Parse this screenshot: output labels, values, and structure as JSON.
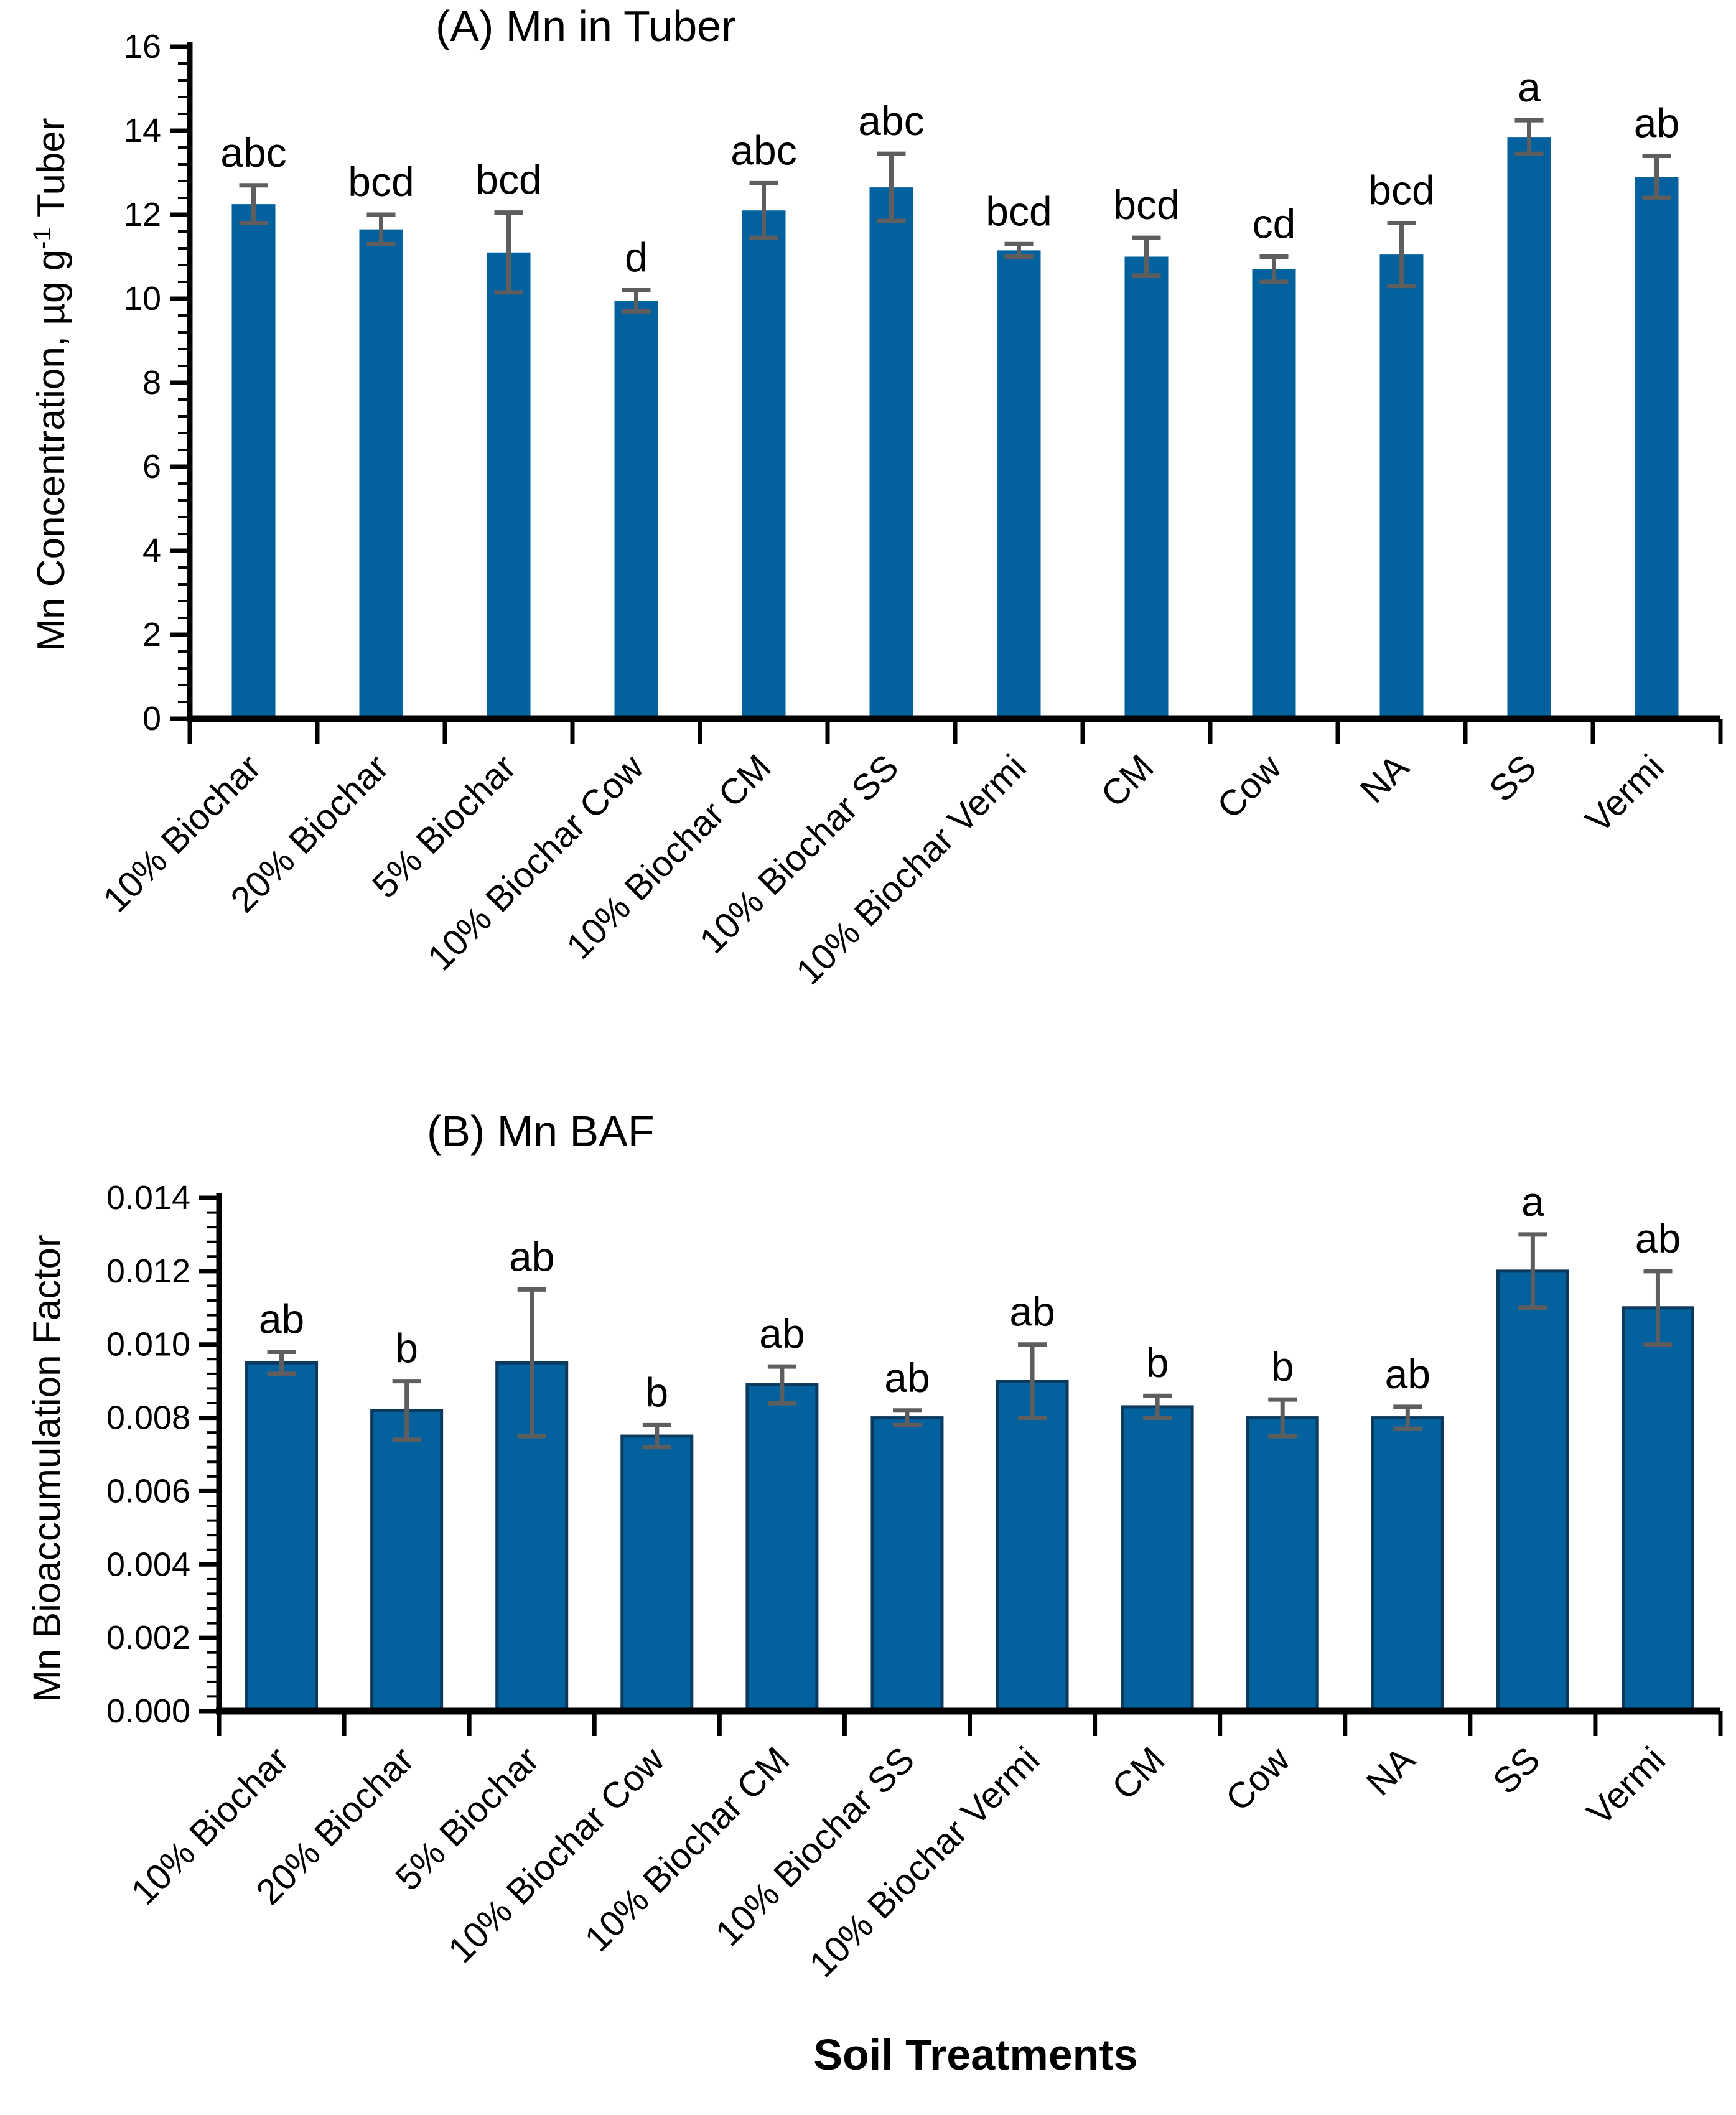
{
  "colors": {
    "bar_fill": "#03619e",
    "bar_border": "#0c3a5e",
    "error_bar": "#5e5e5e",
    "axis": "#000000",
    "text": "#000000",
    "background": "#ffffff"
  },
  "x_axis_title": "Soil Treatments",
  "chart_data": [
    {
      "type": "bar",
      "panel": "A",
      "title": "(A) Mn in Tuber",
      "ylabel": "Mn Concentration, µg g⁻¹ Tuber",
      "ylabel_parts": [
        "Mn Concentration, µg g",
        "-1",
        " Tuber"
      ],
      "xlabel": "",
      "categories": [
        "10% Biochar",
        "20% Biochar",
        "5% Biochar",
        "10% Biochar Cow",
        "10% Biochar CM",
        "10% Biochar SS",
        "10% Biochar Vermi",
        "CM",
        "Cow",
        "NA",
        "SS",
        "Vermi"
      ],
      "values": [
        12.25,
        11.65,
        11.1,
        9.95,
        12.1,
        12.65,
        11.15,
        11.0,
        10.7,
        11.05,
        13.85,
        12.9
      ],
      "error_bars": [
        0.45,
        0.35,
        0.95,
        0.25,
        0.65,
        0.8,
        0.15,
        0.45,
        0.3,
        0.75,
        0.4,
        0.5
      ],
      "sig_letters": [
        "abc",
        "bcd",
        "bcd",
        "d",
        "abc",
        "abc",
        "bcd",
        "bcd",
        "cd",
        "bcd",
        "a",
        "ab"
      ],
      "ylim": [
        0,
        16
      ],
      "ytick_step": 2,
      "yminor_step": 0.4,
      "ytick_labels": [
        "0",
        "2",
        "4",
        "6",
        "8",
        "10",
        "12",
        "14",
        "16"
      ],
      "grid": false,
      "legend": "none"
    },
    {
      "type": "bar",
      "panel": "B",
      "title": "(B) Mn BAF",
      "ylabel": "Mn Bioaccumulation Factor",
      "ylabel_parts": [
        "Mn Bioaccumulation Factor",
        "",
        ""
      ],
      "xlabel": "Soil Treatments",
      "categories": [
        "10% Biochar",
        "20% Biochar",
        "5% Biochar",
        "10% Biochar Cow",
        "10% Biochar CM",
        "10% Biochar SS",
        "10% Biochar Vermi",
        "CM",
        "Cow",
        "NA",
        "SS",
        "Vermi"
      ],
      "values": [
        0.0095,
        0.0082,
        0.0095,
        0.0075,
        0.0089,
        0.008,
        0.009,
        0.0083,
        0.008,
        0.008,
        0.012,
        0.011
      ],
      "error_bars": [
        0.0003,
        0.0008,
        0.002,
        0.0003,
        0.0005,
        0.0002,
        0.001,
        0.0003,
        0.0005,
        0.0003,
        0.001,
        0.001
      ],
      "sig_letters": [
        "ab",
        "b",
        "ab",
        "b",
        "ab",
        "ab",
        "ab",
        "b",
        "b",
        "ab",
        "a",
        "ab"
      ],
      "ylim": [
        0,
        0.014
      ],
      "ytick_step": 0.002,
      "yminor_step": 0.0004,
      "ytick_labels": [
        "0.000",
        "0.002",
        "0.004",
        "0.006",
        "0.008",
        "0.010",
        "0.012",
        "0.014"
      ],
      "grid": false,
      "legend": "none"
    }
  ]
}
